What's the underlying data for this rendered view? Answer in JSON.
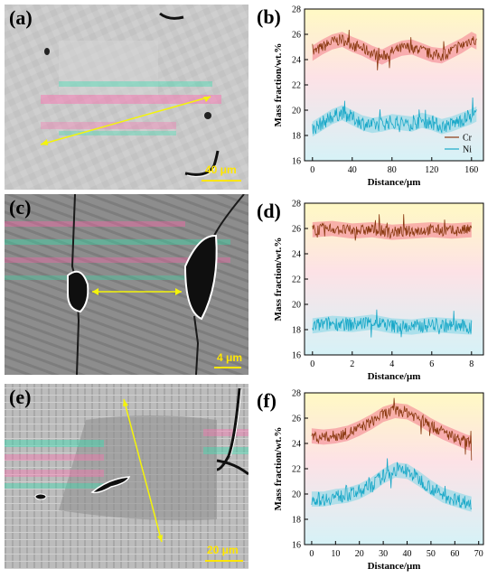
{
  "panels": {
    "a": {
      "label": "(a)",
      "scale_bar": "40 μm"
    },
    "c": {
      "label": "(c)",
      "scale_bar": "4 μm"
    },
    "e": {
      "label": "(e)",
      "scale_bar": "20 μm"
    }
  },
  "colors": {
    "cr": "#8b3a12",
    "ni": "#19a8c8",
    "cr_band": "#f27a8a",
    "ni_band": "#7fd6e6",
    "arrow": "#f4f40a"
  },
  "chart_data": [
    {
      "panel_label": "(b)",
      "type": "line",
      "xlabel": "Distance/μm",
      "ylabel": "Mass fraction/wt.%",
      "xlim": [
        -8,
        172
      ],
      "ylim": [
        16,
        28
      ],
      "xticks": [
        0,
        40,
        80,
        120,
        160
      ],
      "yticks": [
        16,
        18,
        20,
        22,
        24,
        26,
        28
      ],
      "legend": "right",
      "series": [
        {
          "name": "Cr",
          "x": [
            0,
            10,
            20,
            30,
            40,
            50,
            60,
            70,
            80,
            90,
            100,
            110,
            120,
            130,
            140,
            150,
            160,
            165
          ],
          "values": [
            24.5,
            25.0,
            25.4,
            25.6,
            25.2,
            24.9,
            24.5,
            24.2,
            24.6,
            24.9,
            25.0,
            24.7,
            24.4,
            24.3,
            24.7,
            25.1,
            25.6,
            25.4
          ]
        },
        {
          "name": "Ni",
          "x": [
            0,
            10,
            20,
            30,
            40,
            50,
            60,
            70,
            80,
            90,
            100,
            110,
            120,
            130,
            140,
            150,
            160,
            165
          ],
          "values": [
            18.5,
            19.0,
            19.5,
            19.8,
            19.4,
            19.0,
            18.8,
            18.9,
            19.1,
            19.0,
            18.9,
            19.2,
            19.0,
            18.7,
            18.9,
            19.2,
            19.5,
            19.7
          ]
        }
      ]
    },
    {
      "panel_label": "(d)",
      "type": "line",
      "xlabel": "Distance/μm",
      "ylabel": "Mass fraction/wt.%",
      "xlim": [
        -0.4,
        8.6
      ],
      "ylim": [
        16,
        28
      ],
      "xticks": [
        0,
        2,
        4,
        6,
        8
      ],
      "yticks": [
        16,
        18,
        20,
        22,
        24,
        26,
        28
      ],
      "series": [
        {
          "name": "Cr",
          "x": [
            0,
            1,
            2,
            3,
            4,
            5,
            6,
            7,
            8
          ],
          "values": [
            25.9,
            26.0,
            25.8,
            25.9,
            25.7,
            25.8,
            25.9,
            25.8,
            25.9
          ]
        },
        {
          "name": "Ni",
          "x": [
            0,
            1,
            2,
            3,
            4,
            5,
            6,
            7,
            8
          ],
          "values": [
            18.3,
            18.5,
            18.4,
            18.6,
            18.3,
            18.2,
            18.4,
            18.3,
            18.2
          ]
        }
      ]
    },
    {
      "panel_label": "(f)",
      "type": "line",
      "xlabel": "Distance/μm",
      "ylabel": "Mass fraction/wt.%",
      "xlim": [
        -3,
        72
      ],
      "ylim": [
        16,
        28
      ],
      "xticks": [
        0,
        10,
        20,
        30,
        40,
        50,
        60,
        70
      ],
      "yticks": [
        16,
        18,
        20,
        22,
        24,
        26,
        28
      ],
      "series": [
        {
          "name": "Cr",
          "x": [
            0,
            5,
            10,
            15,
            20,
            25,
            30,
            35,
            40,
            45,
            50,
            55,
            60,
            65,
            67
          ],
          "values": [
            24.6,
            24.5,
            24.6,
            24.8,
            25.2,
            25.7,
            26.3,
            26.6,
            26.5,
            26.0,
            25.4,
            24.9,
            24.5,
            24.1,
            24.0
          ]
        },
        {
          "name": "Ni",
          "x": [
            0,
            5,
            10,
            15,
            20,
            25,
            30,
            35,
            40,
            45,
            50,
            55,
            60,
            65,
            67
          ],
          "values": [
            19.6,
            19.6,
            19.8,
            19.9,
            20.2,
            20.7,
            21.4,
            21.9,
            21.8,
            21.2,
            20.5,
            19.9,
            19.6,
            19.3,
            19.2
          ]
        }
      ]
    }
  ]
}
